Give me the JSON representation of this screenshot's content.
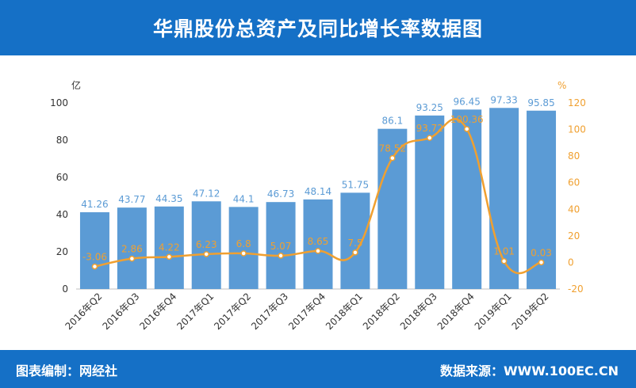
{
  "title": "华鼎股份总资产及同比增长率数据图",
  "footer": {
    "left": "图表编制：网经社",
    "right": "数据来源：WWW.100EC.CN"
  },
  "colors": {
    "header_bg": "#1570c6",
    "bar": "#5b9bd5",
    "line": "#f0a030",
    "bar_label": "#5b9bd5",
    "line_label": "#f0a030"
  },
  "chart_data": {
    "type": "bar",
    "categories": [
      "2016年Q2",
      "2016年Q3",
      "2016年Q4",
      "2017年Q1",
      "2017年Q2",
      "2017年Q3",
      "2017年Q4",
      "2018年Q1",
      "2018年Q2",
      "2018年Q3",
      "2018年Q4",
      "2019年Q1",
      "2019年Q2"
    ],
    "left_unit": "亿",
    "right_unit": "%",
    "ylim_left": [
      0,
      100
    ],
    "yticks_left": [
      0,
      20,
      40,
      60,
      80,
      100
    ],
    "ylim_right": [
      -20,
      120
    ],
    "yticks_right": [
      -20,
      0,
      20,
      40,
      60,
      80,
      100,
      120
    ],
    "series": [
      {
        "type": "bar",
        "axis": "left",
        "values": [
          41.26,
          43.77,
          44.35,
          47.12,
          44.1,
          46.73,
          48.14,
          51.75,
          86.1,
          93.25,
          96.45,
          97.33,
          95.85
        ],
        "labels": [
          "41.26",
          "43.77",
          "44.35",
          "47.12",
          "44.1",
          "46.73",
          "48.14",
          "51.75",
          "86.1",
          "93.25",
          "96.45",
          "97.33",
          "95.85"
        ]
      },
      {
        "type": "line",
        "axis": "right",
        "values": [
          -3.06,
          2.86,
          4.22,
          6.23,
          6.8,
          5.07,
          8.65,
          7.5,
          78.52,
          93.72,
          100.36,
          1.01,
          0.03
        ],
        "labels": [
          "-3.06",
          "2.86",
          "4.22",
          "6.23",
          "6.8",
          "5.07",
          "8.65",
          "7.5",
          "78.52",
          "93.72",
          "100.36",
          "1.01",
          "0.03"
        ]
      }
    ],
    "grid": false
  }
}
